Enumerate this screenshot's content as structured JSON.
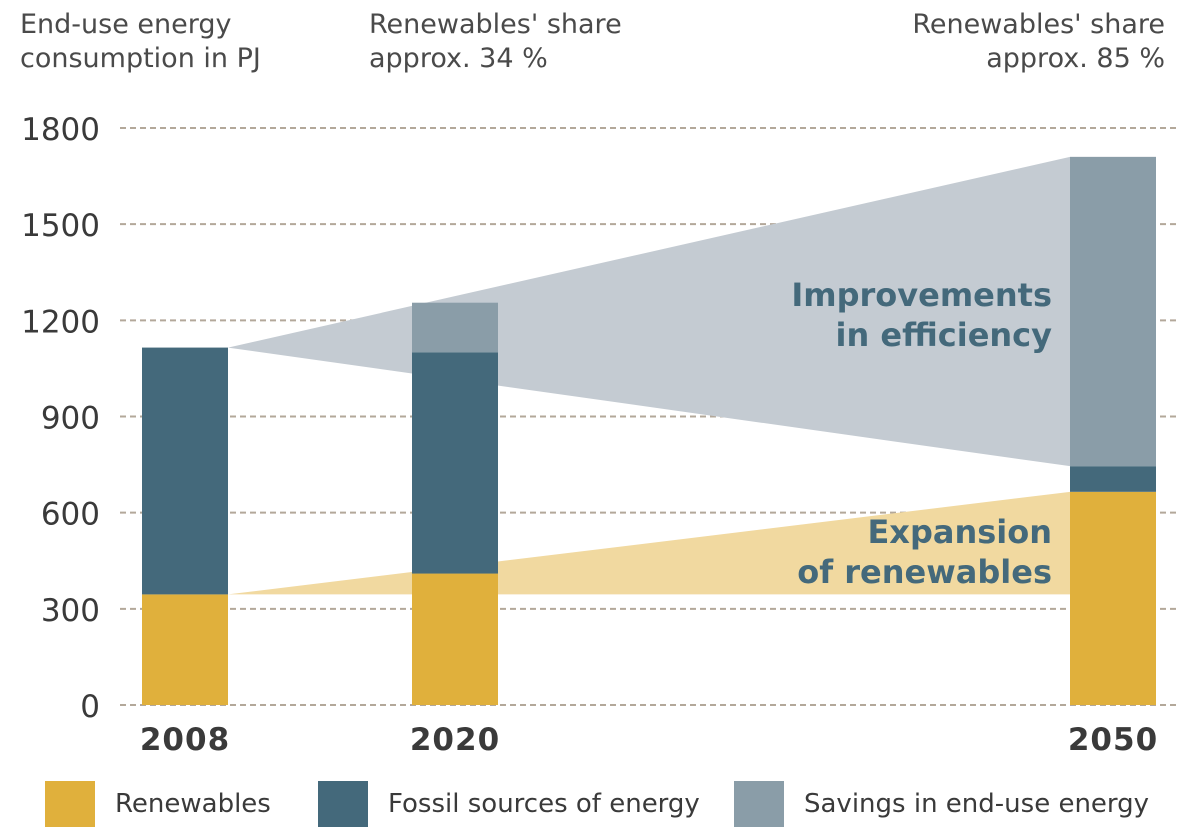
{
  "chart_data": {
    "type": "bar",
    "ylabel": "End-use energy consumption in PJ",
    "categories": [
      "2008",
      "2020",
      "2050"
    ],
    "y_ticks": [
      0,
      300,
      600,
      900,
      1200,
      1500,
      1800
    ],
    "ylim": [
      0,
      1800
    ],
    "grid": true,
    "stacked": true,
    "series": [
      {
        "name": "Renewables",
        "color": "#e0b03c",
        "values": [
          345,
          410,
          665
        ]
      },
      {
        "name": "Fossil sources of energy",
        "color": "#44697b",
        "values": [
          770,
          690,
          80
        ]
      },
      {
        "name": "Savings in end-use energy",
        "color": "#8a9da8",
        "values": [
          0,
          155,
          965
        ]
      }
    ],
    "share_labels": [
      {
        "category": "2020",
        "line1": "Renewables' share",
        "line2": "approx. 34 %"
      },
      {
        "category": "2050",
        "line1": "Renewables' share",
        "line2": "approx. 85 %"
      }
    ],
    "annotations": [
      {
        "id": "efficiency",
        "lines": [
          "Improvements",
          "in efficiency"
        ],
        "color": "#44697b",
        "band_color": "#c4cbd2"
      },
      {
        "id": "renewables",
        "lines": [
          "Expansion",
          "of renewables"
        ],
        "color": "#44697b",
        "band_color": "#f1d9a0"
      }
    ],
    "legend_position": "bottom"
  }
}
